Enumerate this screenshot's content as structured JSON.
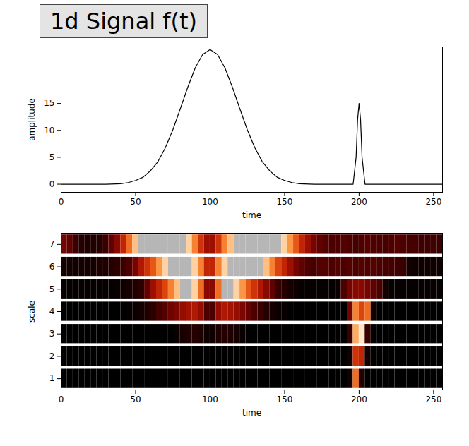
{
  "chart_data": [
    {
      "type": "line",
      "title": "1d Signal f(t)",
      "xlabel": "time",
      "ylabel": "amplitude",
      "color": "#000000",
      "x": [
        0,
        10,
        20,
        30,
        40,
        45,
        50,
        55,
        60,
        65,
        70,
        75,
        80,
        85,
        90,
        95,
        100,
        105,
        110,
        115,
        120,
        125,
        130,
        135,
        140,
        145,
        150,
        155,
        160,
        170,
        180,
        190,
        196,
        198,
        199,
        200,
        201,
        202,
        204,
        210,
        220,
        230,
        240,
        250,
        256
      ],
      "values": [
        0,
        0,
        0,
        0,
        0.1,
        0.3,
        0.7,
        1.3,
        2.5,
        4.2,
        6.8,
        10.1,
        14,
        18,
        21.6,
        24.1,
        25,
        24.1,
        21.6,
        18,
        14,
        10.1,
        6.8,
        4.2,
        2.5,
        1.3,
        0.7,
        0.3,
        0.1,
        0,
        0,
        0,
        0,
        5,
        12,
        15,
        12,
        5,
        0,
        0,
        0,
        0,
        0,
        0,
        0
      ],
      "xlim": [
        0,
        256
      ],
      "xticks": [
        0,
        50,
        100,
        150,
        200,
        250
      ],
      "ylim": [
        -1.5,
        25.5
      ],
      "yticks": [
        0,
        5,
        10,
        15
      ]
    },
    {
      "type": "heatmap",
      "xlabel": "time",
      "ylabel": "scale",
      "xlim": [
        0,
        256
      ],
      "xticks": [
        0,
        50,
        100,
        150,
        200,
        250
      ],
      "ylim": [
        0.5,
        7.5
      ],
      "yticks": [
        1,
        2,
        3,
        4,
        5,
        6,
        7
      ],
      "y": [
        1,
        2,
        3,
        4,
        5,
        6,
        7
      ],
      "bins": [
        0,
        4,
        8,
        12,
        16,
        20,
        24,
        28,
        32,
        36,
        40,
        44,
        48,
        52,
        56,
        60,
        64,
        68,
        72,
        76,
        80,
        84,
        88,
        92,
        96,
        100,
        104,
        108,
        112,
        116,
        120,
        124,
        128,
        132,
        136,
        140,
        144,
        148,
        152,
        156,
        160,
        164,
        168,
        172,
        176,
        180,
        184,
        188,
        192,
        196,
        200,
        204,
        208,
        212,
        216,
        220,
        224,
        228,
        232,
        236,
        240,
        244,
        248,
        252,
        256
      ],
      "zlim": [
        0,
        100
      ],
      "cells": [
        [
          0,
          0,
          0,
          0,
          0,
          0,
          0,
          0,
          0,
          0,
          0,
          0,
          0,
          0,
          0,
          0,
          0,
          0,
          0,
          0,
          0,
          0,
          0,
          0,
          0,
          0,
          0,
          0,
          0,
          0,
          0,
          0,
          0,
          0,
          0,
          0,
          0,
          0,
          0,
          0,
          0,
          0,
          0,
          0,
          0,
          0,
          0,
          0,
          5,
          70,
          10,
          0,
          0,
          0,
          0,
          0,
          0,
          0,
          0,
          0,
          0,
          0,
          0,
          0
        ],
        [
          0,
          0,
          0,
          0,
          0,
          0,
          0,
          0,
          0,
          0,
          0,
          0,
          0,
          0,
          0,
          0,
          0,
          0,
          0,
          0,
          0,
          0,
          0,
          0,
          0,
          0,
          0,
          0,
          0,
          0,
          0,
          0,
          0,
          0,
          0,
          0,
          0,
          0,
          0,
          0,
          0,
          0,
          0,
          0,
          0,
          0,
          0,
          0,
          5,
          55,
          50,
          5,
          0,
          0,
          0,
          0,
          0,
          0,
          0,
          0,
          0,
          0,
          0,
          0
        ],
        [
          0,
          0,
          0,
          0,
          0,
          0,
          0,
          0,
          0,
          0,
          0,
          0,
          0,
          0,
          0,
          0,
          0,
          0,
          0,
          3,
          6,
          8,
          10,
          8,
          4,
          4,
          8,
          10,
          8,
          6,
          3,
          0,
          0,
          0,
          0,
          0,
          0,
          0,
          0,
          0,
          0,
          0,
          0,
          0,
          0,
          0,
          0,
          0,
          15,
          85,
          100,
          15,
          0,
          0,
          0,
          0,
          0,
          0,
          0,
          0,
          0,
          0,
          0,
          0
        ],
        [
          0,
          0,
          0,
          0,
          0,
          0,
          0,
          0,
          0,
          0,
          0,
          2,
          3,
          5,
          8,
          12,
          18,
          22,
          28,
          32,
          38,
          42,
          45,
          38,
          20,
          20,
          38,
          45,
          42,
          38,
          32,
          26,
          20,
          15,
          10,
          6,
          3,
          2,
          0,
          0,
          0,
          0,
          0,
          0,
          0,
          0,
          0,
          0,
          30,
          75,
          60,
          70,
          5,
          0,
          0,
          0,
          0,
          0,
          0,
          0,
          0,
          0,
          0,
          0
        ],
        [
          2,
          2,
          2,
          2,
          2,
          2,
          2,
          2,
          2,
          3,
          4,
          6,
          8,
          12,
          25,
          40,
          50,
          60,
          75,
          90,
          110,
          110,
          95,
          70,
          35,
          35,
          70,
          110,
          110,
          95,
          80,
          65,
          55,
          45,
          35,
          25,
          15,
          10,
          6,
          4,
          2,
          2,
          2,
          2,
          2,
          2,
          3,
          20,
          30,
          35,
          35,
          30,
          25,
          20,
          5,
          2,
          2,
          2,
          2,
          2,
          2,
          2,
          2,
          2
        ],
        [
          5,
          5,
          5,
          5,
          5,
          5,
          8,
          8,
          10,
          12,
          15,
          20,
          30,
          45,
          55,
          65,
          80,
          95,
          110,
          110,
          110,
          110,
          95,
          75,
          50,
          50,
          75,
          95,
          110,
          110,
          110,
          110,
          110,
          110,
          90,
          75,
          60,
          50,
          40,
          30,
          25,
          20,
          18,
          22,
          22,
          20,
          22,
          20,
          22,
          20,
          22,
          20,
          22,
          20,
          18,
          18,
          16,
          15,
          5,
          4,
          4,
          4,
          4,
          4
        ],
        [
          30,
          25,
          15,
          10,
          8,
          8,
          10,
          15,
          25,
          35,
          50,
          70,
          90,
          110,
          110,
          110,
          110,
          110,
          110,
          110,
          110,
          95,
          75,
          55,
          40,
          40,
          55,
          75,
          90,
          110,
          110,
          110,
          110,
          110,
          110,
          110,
          110,
          95,
          80,
          65,
          50,
          40,
          30,
          25,
          22,
          20,
          20,
          22,
          20,
          18,
          20,
          22,
          20,
          20,
          18,
          20,
          22,
          20,
          18,
          18,
          16,
          16,
          16,
          15
        ]
      ]
    }
  ]
}
